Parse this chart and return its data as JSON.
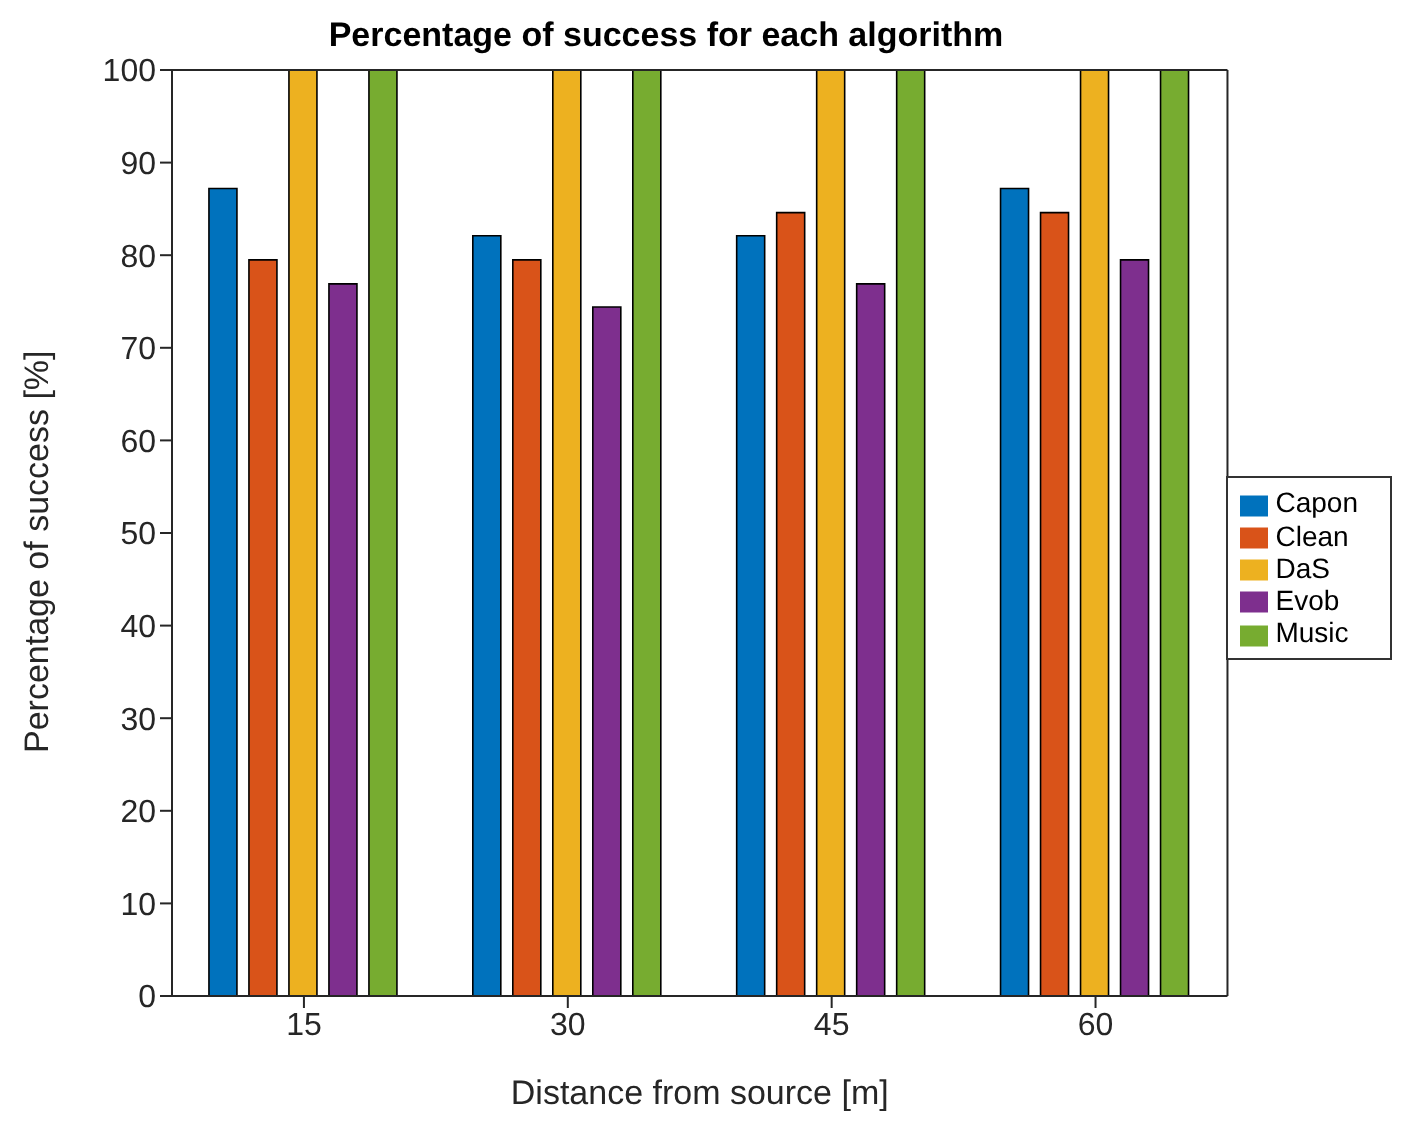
{
  "chart_data": {
    "type": "bar",
    "title": "Percentage of success for each algorithm",
    "xlabel": "Distance from source [m]",
    "ylabel": "Percentage of success [%]",
    "categories": [
      "15",
      "30",
      "45",
      "60"
    ],
    "series": [
      {
        "name": "Capon",
        "color": "#0072bd",
        "values": [
          87.2,
          82.1,
          82.1,
          87.2
        ]
      },
      {
        "name": "Clean",
        "color": "#d95319",
        "values": [
          79.5,
          79.5,
          84.6,
          84.6
        ]
      },
      {
        "name": "DaS",
        "color": "#edb120",
        "values": [
          100,
          100,
          100,
          100
        ]
      },
      {
        "name": "Evob",
        "color": "#7e2f8e",
        "values": [
          76.9,
          74.4,
          76.9,
          79.5
        ]
      },
      {
        "name": "Music",
        "color": "#77ac30",
        "values": [
          100,
          100,
          100,
          100
        ]
      }
    ],
    "ylim": [
      0,
      100
    ],
    "yticks": [
      0,
      10,
      20,
      30,
      40,
      50,
      60,
      70,
      80,
      90,
      100
    ],
    "grid": false,
    "legend": "right"
  }
}
